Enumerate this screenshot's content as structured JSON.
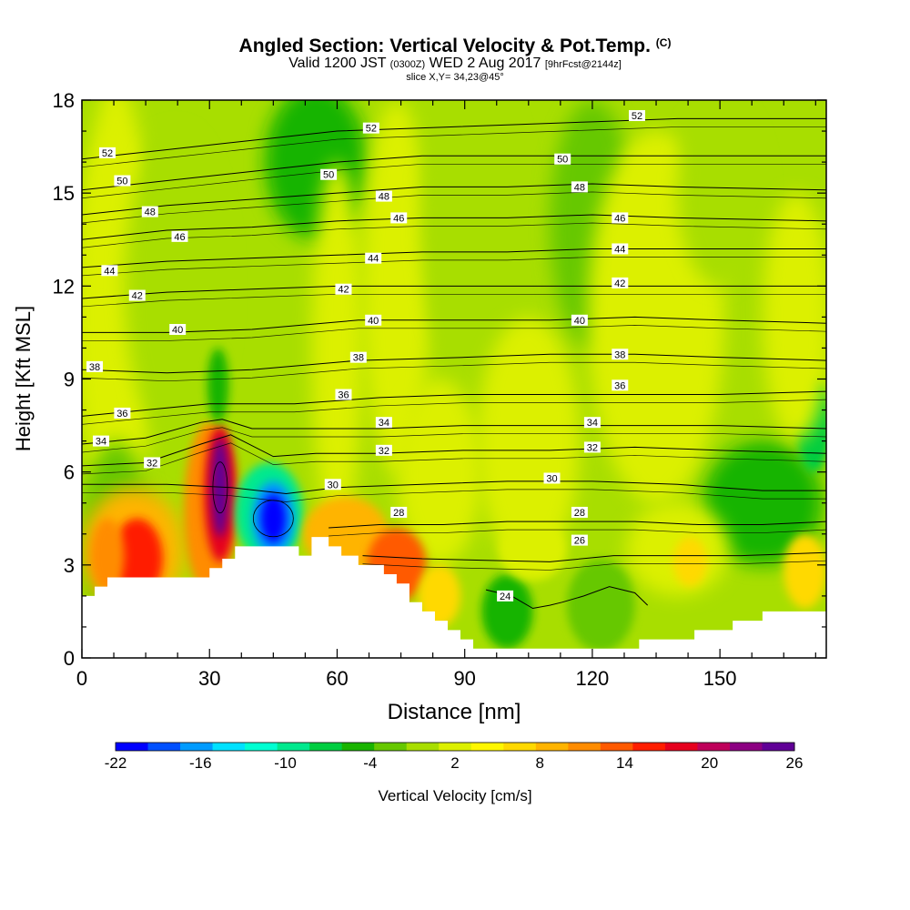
{
  "header": {
    "title": "Angled Section: Vertical Velocity & Pot.Temp.",
    "title_unit": "(C)",
    "valid_prefix": "Valid 1200 JST",
    "valid_utc": "(0300Z)",
    "valid_date": "WED 2 Aug 2017",
    "forecast": "[9hrFcst@2144z]",
    "slice": "slice X,Y= 34,23@45°"
  },
  "chart_data": {
    "type": "heatmap",
    "xlabel": "Distance [nm]",
    "ylabel": "Height [Kft MSL]",
    "xlim": [
      0,
      175
    ],
    "ylim": [
      0,
      18
    ],
    "x_ticks": [
      0,
      30,
      60,
      90,
      120,
      150
    ],
    "y_ticks": [
      0,
      3,
      6,
      9,
      12,
      15,
      18
    ],
    "colorbar": {
      "label": "Vertical Velocity [cm/s]",
      "ticks": [
        -22,
        -16,
        -10,
        -4,
        2,
        8,
        14,
        20,
        26
      ],
      "colors": [
        "#0000ff",
        "#0050ff",
        "#009bff",
        "#00e1ff",
        "#00ffd2",
        "#00e98e",
        "#00cd41",
        "#19b400",
        "#66c800",
        "#a8de00",
        "#dcf000",
        "#fff700",
        "#ffd900",
        "#ffb400",
        "#ff8c00",
        "#ff5a00",
        "#ff1e00",
        "#e6001e",
        "#be005a",
        "#8c0082",
        "#600096"
      ]
    },
    "terrain": [
      {
        "x": 0,
        "h": 2.0
      },
      {
        "x": 3,
        "h": 2.3
      },
      {
        "x": 6,
        "h": 2.6
      },
      {
        "x": 29,
        "h": 2.6
      },
      {
        "x": 30,
        "h": 2.9
      },
      {
        "x": 33,
        "h": 3.2
      },
      {
        "x": 36,
        "h": 3.6
      },
      {
        "x": 50,
        "h": 3.6
      },
      {
        "x": 51,
        "h": 3.3
      },
      {
        "x": 54,
        "h": 3.9
      },
      {
        "x": 58,
        "h": 3.6
      },
      {
        "x": 61,
        "h": 3.3
      },
      {
        "x": 65,
        "h": 3.0
      },
      {
        "x": 71,
        "h": 2.7
      },
      {
        "x": 74,
        "h": 2.4
      },
      {
        "x": 77,
        "h": 1.8
      },
      {
        "x": 80,
        "h": 1.5
      },
      {
        "x": 83,
        "h": 1.2
      },
      {
        "x": 86,
        "h": 0.9
      },
      {
        "x": 89,
        "h": 0.6
      },
      {
        "x": 92,
        "h": 0.3
      },
      {
        "x": 130,
        "h": 0.3
      },
      {
        "x": 131,
        "h": 0.6
      },
      {
        "x": 143,
        "h": 0.6
      },
      {
        "x": 144,
        "h": 0.9
      },
      {
        "x": 152,
        "h": 0.9
      },
      {
        "x": 153,
        "h": 1.2
      },
      {
        "x": 159,
        "h": 1.2
      },
      {
        "x": 160,
        "h": 1.5
      },
      {
        "x": 175,
        "h": 1.5
      }
    ],
    "isentropes": [
      {
        "label": "24",
        "points": [
          [
            95,
            2.2
          ],
          [
            101,
            2.0
          ],
          [
            106,
            1.6
          ],
          [
            110,
            1.7
          ],
          [
            113,
            1.8
          ],
          [
            118,
            2.0
          ],
          [
            124,
            2.3
          ],
          [
            130,
            2.1
          ],
          [
            133,
            1.7
          ]
        ]
      },
      {
        "label": "26",
        "points": [
          [
            66,
            3.3
          ],
          [
            80,
            3.2
          ],
          [
            95,
            3.15
          ],
          [
            110,
            3.1
          ],
          [
            125,
            3.3
          ],
          [
            140,
            3.3
          ],
          [
            155,
            3.3
          ],
          [
            175,
            3.4
          ]
        ]
      },
      {
        "label": "28",
        "points": [
          [
            58,
            4.2
          ],
          [
            70,
            4.3
          ],
          [
            85,
            4.3
          ],
          [
            100,
            4.4
          ],
          [
            115,
            4.4
          ],
          [
            130,
            4.4
          ],
          [
            145,
            4.3
          ],
          [
            160,
            4.3
          ],
          [
            175,
            4.4
          ]
        ]
      },
      {
        "label": "30",
        "points": [
          [
            0,
            5.6
          ],
          [
            20,
            5.6
          ],
          [
            35,
            5.5
          ],
          [
            48,
            5.3
          ],
          [
            60,
            5.5
          ],
          [
            80,
            5.6
          ],
          [
            100,
            5.7
          ],
          [
            120,
            5.7
          ],
          [
            140,
            5.6
          ],
          [
            160,
            5.4
          ],
          [
            175,
            5.4
          ]
        ]
      },
      {
        "label": "32",
        "points": [
          [
            0,
            6.2
          ],
          [
            15,
            6.3
          ],
          [
            28,
            6.9
          ],
          [
            35,
            7.2
          ],
          [
            45,
            6.5
          ],
          [
            55,
            6.6
          ],
          [
            70,
            6.6
          ],
          [
            90,
            6.7
          ],
          [
            110,
            6.7
          ],
          [
            130,
            6.8
          ],
          [
            150,
            6.7
          ],
          [
            175,
            6.6
          ]
        ]
      },
      {
        "label": "34",
        "points": [
          [
            0,
            6.9
          ],
          [
            15,
            7.1
          ],
          [
            28,
            7.6
          ],
          [
            33,
            7.7
          ],
          [
            40,
            7.4
          ],
          [
            55,
            7.4
          ],
          [
            70,
            7.4
          ],
          [
            90,
            7.5
          ],
          [
            110,
            7.5
          ],
          [
            130,
            7.5
          ],
          [
            150,
            7.5
          ],
          [
            175,
            7.4
          ]
        ]
      },
      {
        "label": "36",
        "points": [
          [
            0,
            7.8
          ],
          [
            15,
            8.0
          ],
          [
            30,
            8.2
          ],
          [
            50,
            8.2
          ],
          [
            70,
            8.4
          ],
          [
            90,
            8.5
          ],
          [
            110,
            8.5
          ],
          [
            130,
            8.5
          ],
          [
            150,
            8.5
          ],
          [
            175,
            8.6
          ]
        ]
      },
      {
        "label": "38",
        "points": [
          [
            0,
            9.3
          ],
          [
            20,
            9.2
          ],
          [
            40,
            9.3
          ],
          [
            65,
            9.6
          ],
          [
            90,
            9.7
          ],
          [
            110,
            9.8
          ],
          [
            130,
            9.8
          ],
          [
            150,
            9.7
          ],
          [
            175,
            9.6
          ]
        ]
      },
      {
        "label": "40",
        "points": [
          [
            0,
            10.5
          ],
          [
            20,
            10.5
          ],
          [
            40,
            10.6
          ],
          [
            65,
            10.9
          ],
          [
            90,
            10.9
          ],
          [
            110,
            10.9
          ],
          [
            130,
            11.0
          ],
          [
            150,
            10.9
          ],
          [
            175,
            10.8
          ]
        ]
      },
      {
        "label": "42",
        "points": [
          [
            0,
            11.6
          ],
          [
            20,
            11.8
          ],
          [
            40,
            11.9
          ],
          [
            60,
            12.0
          ],
          [
            80,
            12.0
          ],
          [
            100,
            12.0
          ],
          [
            120,
            12.0
          ],
          [
            140,
            12.0
          ],
          [
            175,
            12.0
          ]
        ]
      },
      {
        "label": "44",
        "points": [
          [
            0,
            12.6
          ],
          [
            20,
            12.8
          ],
          [
            40,
            12.9
          ],
          [
            60,
            13.0
          ],
          [
            80,
            13.1
          ],
          [
            100,
            13.1
          ],
          [
            120,
            13.2
          ],
          [
            140,
            13.2
          ],
          [
            175,
            13.2
          ]
        ]
      },
      {
        "label": "46",
        "points": [
          [
            0,
            13.5
          ],
          [
            20,
            13.8
          ],
          [
            40,
            13.9
          ],
          [
            60,
            14.1
          ],
          [
            80,
            14.2
          ],
          [
            100,
            14.2
          ],
          [
            120,
            14.3
          ],
          [
            140,
            14.2
          ],
          [
            175,
            14.1
          ]
        ]
      },
      {
        "label": "48",
        "points": [
          [
            0,
            14.3
          ],
          [
            20,
            14.6
          ],
          [
            40,
            14.8
          ],
          [
            60,
            15.0
          ],
          [
            80,
            15.2
          ],
          [
            100,
            15.2
          ],
          [
            120,
            15.3
          ],
          [
            140,
            15.2
          ],
          [
            175,
            15.1
          ]
        ]
      },
      {
        "label": "50",
        "points": [
          [
            0,
            15.1
          ],
          [
            20,
            15.4
          ],
          [
            40,
            15.7
          ],
          [
            60,
            16.0
          ],
          [
            80,
            16.2
          ],
          [
            100,
            16.2
          ],
          [
            120,
            16.2
          ],
          [
            140,
            16.2
          ],
          [
            175,
            16.2
          ]
        ]
      },
      {
        "label": "52",
        "points": [
          [
            0,
            16.1
          ],
          [
            20,
            16.4
          ],
          [
            40,
            16.7
          ],
          [
            60,
            17.0
          ],
          [
            80,
            17.1
          ],
          [
            100,
            17.2
          ],
          [
            120,
            17.3
          ],
          [
            140,
            17.4
          ],
          [
            175,
            17.4
          ]
        ]
      }
    ],
    "isentrope_labels": [
      {
        "text": "52",
        "x": 6,
        "y": 16.3
      },
      {
        "text": "50",
        "x": 9.5,
        "y": 15.4
      },
      {
        "text": "48",
        "x": 16,
        "y": 14.4
      },
      {
        "text": "46",
        "x": 23,
        "y": 13.6
      },
      {
        "text": "44",
        "x": 6.5,
        "y": 12.5
      },
      {
        "text": "42",
        "x": 13,
        "y": 11.7
      },
      {
        "text": "40",
        "x": 22.5,
        "y": 10.6
      },
      {
        "text": "38",
        "x": 3,
        "y": 9.4
      },
      {
        "text": "36",
        "x": 9.5,
        "y": 7.9
      },
      {
        "text": "34",
        "x": 4.5,
        "y": 7.0
      },
      {
        "text": "32",
        "x": 16.5,
        "y": 6.3
      },
      {
        "text": "52",
        "x": 68,
        "y": 17.1
      },
      {
        "text": "50",
        "x": 58,
        "y": 15.6
      },
      {
        "text": "48",
        "x": 71,
        "y": 14.9
      },
      {
        "text": "46",
        "x": 74.5,
        "y": 14.2
      },
      {
        "text": "44",
        "x": 68.5,
        "y": 12.9
      },
      {
        "text": "42",
        "x": 61.5,
        "y": 11.9
      },
      {
        "text": "40",
        "x": 68.5,
        "y": 10.9
      },
      {
        "text": "38",
        "x": 65,
        "y": 9.7
      },
      {
        "text": "36",
        "x": 61.5,
        "y": 8.5
      },
      {
        "text": "34",
        "x": 71,
        "y": 7.6
      },
      {
        "text": "32",
        "x": 71,
        "y": 6.7
      },
      {
        "text": "30",
        "x": 59,
        "y": 5.6
      },
      {
        "text": "28",
        "x": 74.5,
        "y": 4.7
      },
      {
        "text": "52",
        "x": 130.5,
        "y": 17.5
      },
      {
        "text": "50",
        "x": 113,
        "y": 16.1
      },
      {
        "text": "48",
        "x": 117,
        "y": 15.2
      },
      {
        "text": "46",
        "x": 126.5,
        "y": 14.2
      },
      {
        "text": "44",
        "x": 126.5,
        "y": 13.2
      },
      {
        "text": "42",
        "x": 126.5,
        "y": 12.1
      },
      {
        "text": "40",
        "x": 117,
        "y": 10.9
      },
      {
        "text": "38",
        "x": 126.5,
        "y": 9.8
      },
      {
        "text": "36",
        "x": 126.5,
        "y": 8.8
      },
      {
        "text": "34",
        "x": 120,
        "y": 7.6
      },
      {
        "text": "32",
        "x": 120,
        "y": 6.8
      },
      {
        "text": "30",
        "x": 110.5,
        "y": 5.8
      },
      {
        "text": "28",
        "x": 117,
        "y": 4.7
      },
      {
        "text": "26",
        "x": 117,
        "y": 3.8
      },
      {
        "text": "24",
        "x": 99.5,
        "y": 2.0
      }
    ],
    "features": [
      {
        "name": "updraft-max",
        "x": 32.5,
        "y": 5.5,
        "value": 26
      },
      {
        "name": "downdraft-min",
        "x": 45,
        "y": 4.5,
        "value": -20
      },
      {
        "name": "updraft-lowlevel-west",
        "x": 13,
        "y": 3.5,
        "value": 16
      },
      {
        "name": "updraft-lee",
        "x": 75,
        "y": 3.0,
        "value": 14
      }
    ]
  }
}
